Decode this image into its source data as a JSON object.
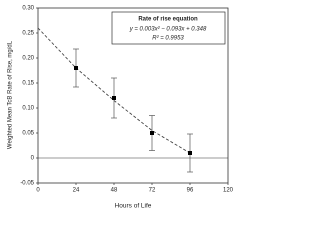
{
  "chart_data": {
    "type": "scatter",
    "y_label": "Weighted Mean TcB Rate of Rise, mg/dL",
    "x_label": "Hours of Life",
    "x": [
      24,
      48,
      72,
      96
    ],
    "series": [
      {
        "name": "Rate of rise",
        "color": "#000000",
        "values": [
          0.18,
          0.12,
          0.05,
          0.01
        ],
        "errors": [
          0.038,
          0.04,
          0.035,
          0.038
        ]
      }
    ],
    "fit": {
      "x": [
        0,
        24,
        48,
        72,
        96
      ],
      "values": [
        0.26,
        0.18,
        0.115,
        0.055,
        0.01
      ],
      "color": "#444444",
      "dashed": true
    },
    "legend": {
      "title": "Rate of rise equation",
      "equation": "y = 0.003x² − 0.093x + 0.348",
      "r2": "R² = 0.9953",
      "position": "upper right"
    },
    "xlim": [
      0,
      120
    ],
    "xticks": [
      0,
      24,
      48,
      72,
      96,
      120
    ],
    "ylim": [
      -0.05,
      0.3
    ],
    "yticks": [
      -0.05,
      {
        "value": 0,
        "label": "0"
      },
      0.05,
      {
        "value": 0.1,
        "label": "0.10"
      },
      0.15,
      {
        "value": 0.2,
        "label": "0.20"
      },
      0.25,
      {
        "value": 0.3,
        "label": "0.30"
      }
    ],
    "grid": false
  }
}
